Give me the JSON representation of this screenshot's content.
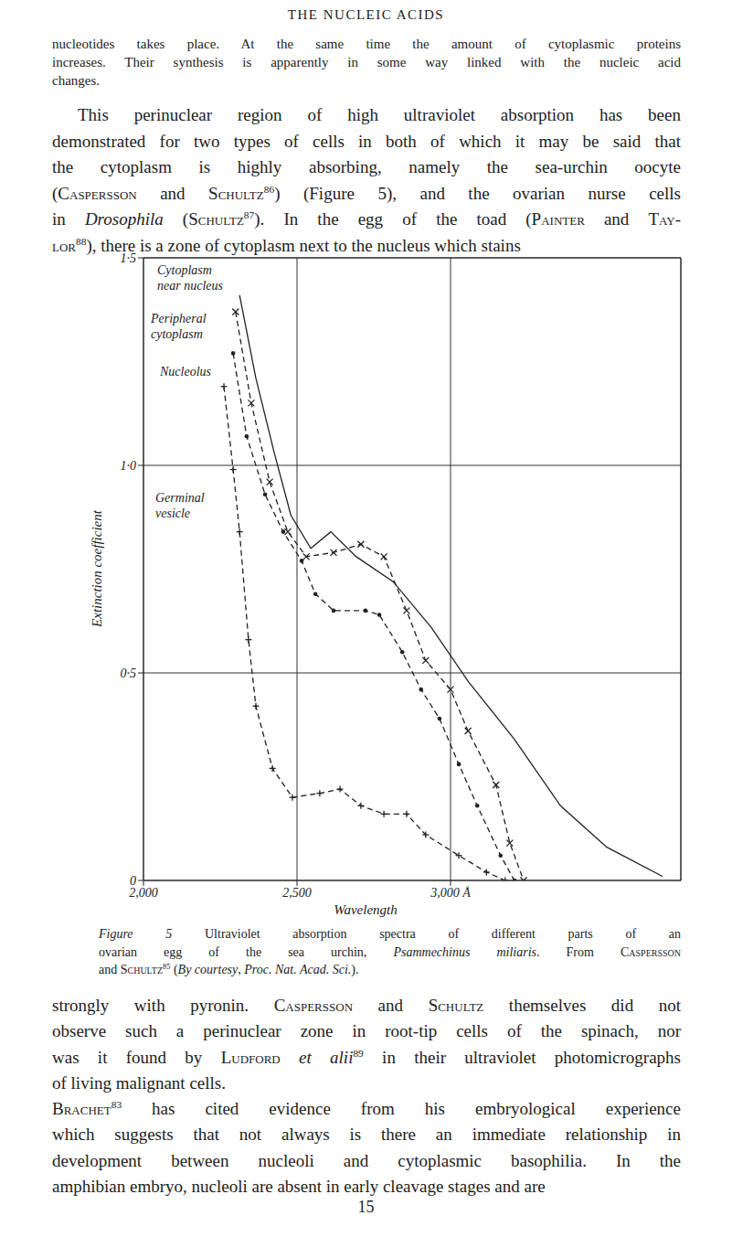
{
  "header": "THE NUCLEIC ACIDS",
  "text_before": [
    [
      [
        "nucleotides takes place. At the same time the amount of cytoplasmic proteins"
      ],
      [
        "increases. Their synthesis is apparently in some way linked with the nucleic acid"
      ],
      [
        "changes."
      ]
    ],
    [
      [
        "This perinuclear region of high ultraviolet absorption has been"
      ],
      [
        "demonstrated for two types of cells in both of which it may be said that"
      ],
      [
        "the cytoplasm is highly absorbing, namely the sea-urchin oocyte"
      ],
      [
        "(",
        {
          "sc": "Caspersson"
        },
        " and ",
        {
          "sc": "Schultz"
        },
        {
          "sup": "86"
        },
        ") (Figure 5), and the ovarian nurse cells"
      ],
      [
        "in ",
        {
          "i": "Drosophila"
        },
        " (",
        {
          "sc": "Schultz"
        },
        {
          "sup": "87"
        },
        "). In the egg of the toad (",
        {
          "sc": "Painter"
        },
        " and ",
        {
          "sc": "Tay-"
        }
      ],
      [
        {
          "sc": "lor"
        },
        {
          "sup": "88"
        },
        "), there is a zone of cytoplasm next to the nucleus which stains"
      ]
    ]
  ],
  "chart_data": {
    "type": "line",
    "x_label": "Wavelength",
    "y_label": "Extinction coefficient",
    "xlim": [
      2000,
      3750
    ],
    "xticks": [
      {
        "value": 2000,
        "label": "2,000"
      },
      {
        "value": 2500,
        "label": "2,500"
      },
      {
        "value": 3000,
        "label": "3,000 Å"
      }
    ],
    "ylim": [
      0,
      1.5
    ],
    "yticks": [
      {
        "value": 0,
        "label": "0"
      },
      {
        "value": 0.5,
        "label": "0·5"
      },
      {
        "value": 1,
        "label": "1·0"
      },
      {
        "value": 1.5,
        "label": "1·5"
      }
    ],
    "grid": true,
    "series": [
      {
        "name": "Cytoplasm near nucleus",
        "color": "#222222",
        "marker": "none",
        "line_style": "solid",
        "x": [
          2313,
          2366,
          2426,
          2480,
          2545,
          2610,
          2693,
          2813,
          2937,
          3057,
          3208,
          3358,
          3509,
          3690
        ],
        "values": [
          1.41,
          1.21,
          1.03,
          0.88,
          0.8,
          0.84,
          0.78,
          0.72,
          0.61,
          0.48,
          0.34,
          0.18,
          0.08,
          0.01
        ]
      },
      {
        "name": "Peripheral cytoplasm",
        "color": "#222222",
        "marker": "x",
        "line_style": "dashed",
        "x": [
          2300,
          2351,
          2411,
          2470,
          2530,
          2619,
          2708,
          2783,
          2857,
          2919,
          3000,
          3057,
          3148,
          3193,
          3238
        ],
        "values": [
          1.37,
          1.15,
          0.96,
          0.84,
          0.78,
          0.79,
          0.81,
          0.78,
          0.65,
          0.53,
          0.46,
          0.36,
          0.23,
          0.09,
          0
        ]
      },
      {
        "name": "Nucleolus",
        "color": "#222222",
        "marker": "dot",
        "line_style": "dashed",
        "x": [
          2292,
          2336,
          2396,
          2455,
          2515,
          2560,
          2619,
          2723,
          2768,
          2843,
          2904,
          2964,
          3027,
          3087,
          3163,
          3208
        ],
        "values": [
          1.27,
          1.07,
          0.93,
          0.84,
          0.77,
          0.69,
          0.65,
          0.65,
          0.64,
          0.55,
          0.46,
          0.39,
          0.28,
          0.18,
          0.06,
          0
        ]
      },
      {
        "name": "Germinal vesicle",
        "color": "#222222",
        "marker": "plus",
        "line_style": "dashed",
        "x": [
          2262,
          2292,
          2313,
          2342,
          2366,
          2420,
          2485,
          2574,
          2640,
          2708,
          2783,
          2857,
          2919,
          3027,
          3117,
          3178
        ],
        "values": [
          1.19,
          0.99,
          0.84,
          0.58,
          0.42,
          0.27,
          0.2,
          0.21,
          0.22,
          0.18,
          0.16,
          0.16,
          0.11,
          0.06,
          0.02,
          0
        ]
      }
    ]
  },
  "caption": [
    [
      {
        "i": "Figure"
      },
      " ",
      {
        "i": "5"
      },
      " Ultraviolet absorption spectra of different parts of an"
    ],
    [
      "ovarian egg of the sea urchin, ",
      {
        "i": "Psammechinus miliaris"
      },
      ". From ",
      {
        "sc": "Caspersson"
      }
    ],
    [
      "and ",
      {
        "sc": "Schultz"
      },
      {
        "sup": "85"
      },
      " (",
      {
        "i": "By courtesy"
      },
      ", ",
      {
        "i": "Proc. Nat. Acad. Sci."
      },
      ")."
    ]
  ],
  "text_after": [
    [
      [
        "strongly with pyronin. ",
        {
          "sc": "Caspersson"
        },
        " and ",
        {
          "sc": "Schultz"
        },
        " themselves did not"
      ],
      [
        "observe such a perinuclear zone in root-tip cells of the spinach, nor"
      ],
      [
        "was it found by ",
        {
          "sc": "Ludford"
        },
        " ",
        {
          "i": "et alii"
        },
        {
          "sup": "89"
        },
        " in their ultraviolet photomicrographs"
      ],
      [
        "of living malignant cells."
      ]
    ],
    [
      [
        {
          "sc": "Brachet"
        },
        {
          "sup": "83"
        },
        " has cited evidence from his embryological experience"
      ],
      [
        "which suggests that not always is there an immediate relationship in"
      ],
      [
        "development between nucleoli and cytoplasmic basophilia. In the"
      ],
      [
        "amphibian embryo, nucleoli are absent in early cleavage stages and are"
      ]
    ]
  ],
  "page_number": 15
}
